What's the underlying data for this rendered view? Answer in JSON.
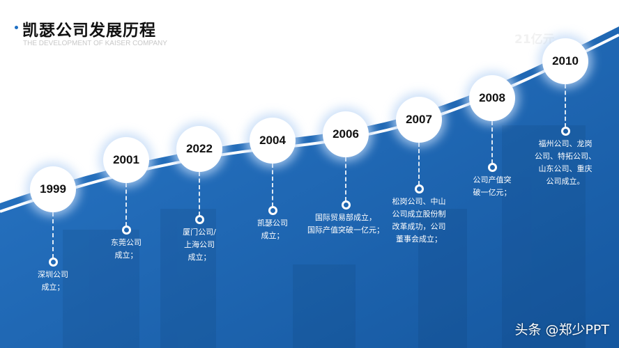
{
  "header": {
    "title": "凯瑟公司发展历程",
    "subtitle": "THE DEVELOPMENT OF KAISER COMPANY",
    "ghost_text": "21亿元"
  },
  "colors": {
    "accent": "#1e6fc4",
    "blue_dark": "#1a5ea8"
  },
  "timeline": [
    {
      "year": "1999",
      "text": "深圳公司\n成立；"
    },
    {
      "year": "2001",
      "text": "东莞公司\n成立；"
    },
    {
      "year": "2022",
      "text": "厦门公司/\n上海公司\n成立；"
    },
    {
      "year": "2004",
      "text": "凯瑟公司\n成立；"
    },
    {
      "year": "2006",
      "text": "国际贸易部成立，\n国际产值突破一亿元；"
    },
    {
      "year": "2007",
      "text": "松岗公司、中山\n公司成立股份制\n改革成功，公司\n董事会成立；"
    },
    {
      "year": "2008",
      "text": "公司产值突\n破一亿元；"
    },
    {
      "year": "2010",
      "text": "福州公司、龙岗\n公司、特拓公司、\n山东公司、重庆\n公司成立。"
    }
  ],
  "watermark": "头条 @郑少PPT"
}
